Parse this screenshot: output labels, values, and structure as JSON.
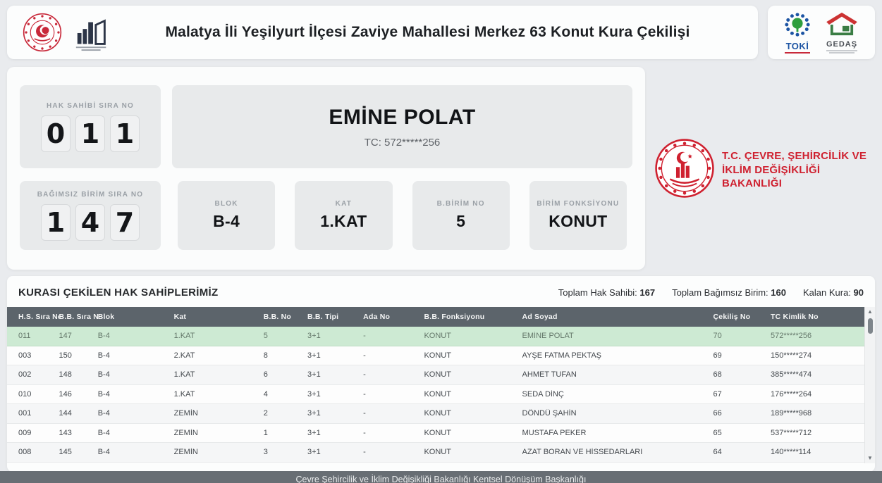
{
  "header": {
    "title": "Malatya İli Yeşilyurt İlçesi Zaviye Mahallesi Merkez 63 Konut Kura Çekilişi",
    "toki_label": "TOKİ",
    "gedas_label": "GEDAŞ"
  },
  "hero": {
    "hak_sahibi": {
      "label": "HAK SAHİBİ SIRA NO",
      "digits": [
        "0",
        "1",
        "1"
      ]
    },
    "winner": {
      "name": "EMİNE POLAT",
      "tc": "TC: 572*****256"
    },
    "bagimsiz_birim": {
      "label": "BAĞIMSIZ BİRİM SIRA NO",
      "digits": [
        "1",
        "4",
        "7"
      ]
    },
    "info_cards": [
      {
        "label": "BLOK",
        "value": "B-4"
      },
      {
        "label": "KAT",
        "value": "1.KAT"
      },
      {
        "label": "B.BİRİM NO",
        "value": "5"
      },
      {
        "label": "BİRİM FONKSİYONU",
        "value": "KONUT"
      }
    ]
  },
  "ministry": {
    "line1": "T.C. ÇEVRE, ŞEHİRCİLİK VE",
    "line2": "İKLİM DEĞİŞİKLİĞİ BAKANLIĞI"
  },
  "table": {
    "title": "KURASI ÇEKİLEN HAK SAHİPLERİMİZ",
    "stats": [
      {
        "label": "Toplam Hak Sahibi:",
        "value": "167"
      },
      {
        "label": "Toplam Bağımsız Birim:",
        "value": "160"
      },
      {
        "label": "Kalan Kura:",
        "value": "90"
      }
    ],
    "columns": [
      "H.S. Sıra No",
      "B.B. Sıra No",
      "Blok",
      "Kat",
      "B.B. No",
      "B.B. Tipi",
      "Ada No",
      "B.B. Fonksiyonu",
      "Ad Soyad",
      "Çekiliş No",
      "TC Kimlik No"
    ],
    "rows": [
      {
        "highlighted": true,
        "cells": [
          "011",
          "147",
          "B-4",
          "1.KAT",
          "5",
          "3+1",
          "-",
          "KONUT",
          "EMİNE POLAT",
          "70",
          "572*****256"
        ]
      },
      {
        "highlighted": false,
        "cells": [
          "003",
          "150",
          "B-4",
          "2.KAT",
          "8",
          "3+1",
          "-",
          "KONUT",
          "AYŞE FATMA PEKTAŞ",
          "69",
          "150*****274"
        ]
      },
      {
        "highlighted": false,
        "cells": [
          "002",
          "148",
          "B-4",
          "1.KAT",
          "6",
          "3+1",
          "-",
          "KONUT",
          "AHMET TUFAN",
          "68",
          "385*****474"
        ]
      },
      {
        "highlighted": false,
        "cells": [
          "010",
          "146",
          "B-4",
          "1.KAT",
          "4",
          "3+1",
          "-",
          "KONUT",
          "SEDA DİNÇ",
          "67",
          "176*****264"
        ]
      },
      {
        "highlighted": false,
        "cells": [
          "001",
          "144",
          "B-4",
          "ZEMİN",
          "2",
          "3+1",
          "-",
          "KONUT",
          "DÖNDÜ ŞAHİN",
          "66",
          "189*****968"
        ]
      },
      {
        "highlighted": false,
        "cells": [
          "009",
          "143",
          "B-4",
          "ZEMİN",
          "1",
          "3+1",
          "-",
          "KONUT",
          "MUSTAFA PEKER",
          "65",
          "537*****712"
        ]
      },
      {
        "highlighted": false,
        "cells": [
          "008",
          "145",
          "B-4",
          "ZEMİN",
          "3",
          "3+1",
          "-",
          "KONUT",
          "AZAT BORAN VE HİSSEDARLARI",
          "64",
          "140*****114"
        ]
      }
    ]
  },
  "footer": {
    "text": "Çevre Şehircilik ve İklim Değişikliği Bakanlığı Kentsel Dönüşüm Başkanlığı"
  }
}
